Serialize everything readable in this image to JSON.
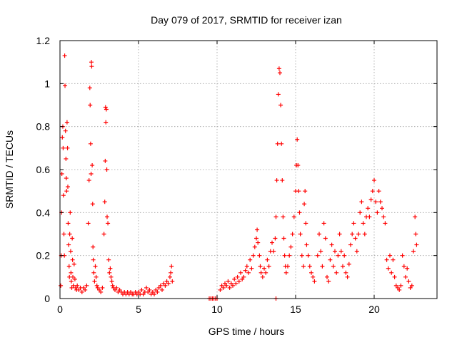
{
  "chart_data": {
    "type": "scatter",
    "title": "Day 079 of 2017, SRMTID for receiver izan",
    "xlabel": "GPS time / hours",
    "ylabel": "SRMTID / TECUs",
    "xlim": [
      0,
      24
    ],
    "ylim": [
      0,
      1.2
    ],
    "x_ticks": [
      0,
      5,
      10,
      15,
      20
    ],
    "x_tick_labels": [
      "0",
      "5",
      "10",
      "15",
      "20"
    ],
    "y_ticks": [
      0,
      0.2,
      0.4,
      0.6,
      0.8,
      1.0,
      1.2
    ],
    "y_tick_labels": [
      "0",
      "0.2",
      "0.4",
      "0.6",
      "0.8",
      "1",
      "1.2"
    ],
    "grid": true,
    "marker": "+",
    "series": [
      {
        "name": "SRMTID",
        "color": "#ff0000",
        "points": [
          [
            0.05,
            0.06
          ],
          [
            0.08,
            0.2
          ],
          [
            0.1,
            0.4
          ],
          [
            0.12,
            0.58
          ],
          [
            0.15,
            0.75
          ],
          [
            0.18,
            0.8
          ],
          [
            0.2,
            0.7
          ],
          [
            0.22,
            0.48
          ],
          [
            0.25,
            0.3
          ],
          [
            0.28,
            0.2
          ],
          [
            0.3,
            1.13
          ],
          [
            0.32,
            0.99
          ],
          [
            0.35,
            0.78
          ],
          [
            0.38,
            0.65
          ],
          [
            0.4,
            0.56
          ],
          [
            0.42,
            0.5
          ],
          [
            0.45,
            0.82
          ],
          [
            0.48,
            0.7
          ],
          [
            0.5,
            0.52
          ],
          [
            0.52,
            0.35
          ],
          [
            0.55,
            0.25
          ],
          [
            0.58,
            0.15
          ],
          [
            0.6,
            0.1
          ],
          [
            0.62,
            0.3
          ],
          [
            0.65,
            0.4
          ],
          [
            0.68,
            0.22
          ],
          [
            0.7,
            0.12
          ],
          [
            0.72,
            0.08
          ],
          [
            0.75,
            0.05
          ],
          [
            0.78,
            0.28
          ],
          [
            0.8,
            0.18
          ],
          [
            0.82,
            0.1
          ],
          [
            0.85,
            0.06
          ],
          [
            0.9,
            0.16
          ],
          [
            0.95,
            0.09
          ],
          [
            1.0,
            0.05
          ],
          [
            1.05,
            0.04
          ],
          [
            1.1,
            0.06
          ],
          [
            1.2,
            0.04
          ],
          [
            1.3,
            0.05
          ],
          [
            1.4,
            0.03
          ],
          [
            1.5,
            0.05
          ],
          [
            1.6,
            0.04
          ],
          [
            1.7,
            0.06
          ],
          [
            1.8,
            0.35
          ],
          [
            1.85,
            0.55
          ],
          [
            1.9,
            0.98
          ],
          [
            1.92,
            0.9
          ],
          [
            1.95,
            0.72
          ],
          [
            1.98,
            0.58
          ],
          [
            2.0,
            1.1
          ],
          [
            2.02,
            1.08
          ],
          [
            2.05,
            0.62
          ],
          [
            2.08,
            0.44
          ],
          [
            2.1,
            0.24
          ],
          [
            2.12,
            0.18
          ],
          [
            2.15,
            0.12
          ],
          [
            2.2,
            0.08
          ],
          [
            2.25,
            0.15
          ],
          [
            2.3,
            0.1
          ],
          [
            2.35,
            0.06
          ],
          [
            2.4,
            0.05
          ],
          [
            2.5,
            0.04
          ],
          [
            2.6,
            0.03
          ],
          [
            2.7,
            0.05
          ],
          [
            2.8,
            0.3
          ],
          [
            2.85,
            0.45
          ],
          [
            2.88,
            0.64
          ],
          [
            2.9,
            0.89
          ],
          [
            2.92,
            0.82
          ],
          [
            2.95,
            0.88
          ],
          [
            2.98,
            0.6
          ],
          [
            3.0,
            0.38
          ],
          [
            3.05,
            0.35
          ],
          [
            3.1,
            0.18
          ],
          [
            3.15,
            0.12
          ],
          [
            3.2,
            0.14
          ],
          [
            3.25,
            0.1
          ],
          [
            3.3,
            0.08
          ],
          [
            3.35,
            0.06
          ],
          [
            3.4,
            0.05
          ],
          [
            3.5,
            0.04
          ],
          [
            3.6,
            0.05
          ],
          [
            3.7,
            0.03
          ],
          [
            3.8,
            0.04
          ],
          [
            3.9,
            0.03
          ],
          [
            4.0,
            0.02
          ],
          [
            4.1,
            0.03
          ],
          [
            4.2,
            0.02
          ],
          [
            4.3,
            0.03
          ],
          [
            4.4,
            0.02
          ],
          [
            4.5,
            0.03
          ],
          [
            4.6,
            0.02
          ],
          [
            4.7,
            0.02
          ],
          [
            4.8,
            0.03
          ],
          [
            4.9,
            0.02
          ],
          [
            5.0,
            0.03
          ],
          [
            5.1,
            0.02
          ],
          [
            5.2,
            0.04
          ],
          [
            5.3,
            0.02
          ],
          [
            5.4,
            0.03
          ],
          [
            5.5,
            0.05
          ],
          [
            5.6,
            0.03
          ],
          [
            5.7,
            0.04
          ],
          [
            5.8,
            0.02
          ],
          [
            5.9,
            0.03
          ],
          [
            6.0,
            0.02
          ],
          [
            6.1,
            0.04
          ],
          [
            6.2,
            0.03
          ],
          [
            6.3,
            0.05
          ],
          [
            6.4,
            0.06
          ],
          [
            6.5,
            0.04
          ],
          [
            6.6,
            0.07
          ],
          [
            6.7,
            0.06
          ],
          [
            6.8,
            0.08
          ],
          [
            6.9,
            0.07
          ],
          [
            7.0,
            0.1
          ],
          [
            7.05,
            0.12
          ],
          [
            7.1,
            0.15
          ],
          [
            7.15,
            0.08
          ],
          [
            9.5,
            0.0
          ],
          [
            9.6,
            0.0
          ],
          [
            9.7,
            0.0
          ],
          [
            9.8,
            0.0
          ],
          [
            9.9,
            0.0
          ],
          [
            10.0,
            0.0
          ],
          [
            13.75,
            0.0
          ],
          [
            10.2,
            0.04
          ],
          [
            10.3,
            0.06
          ],
          [
            10.4,
            0.05
          ],
          [
            10.5,
            0.07
          ],
          [
            10.6,
            0.06
          ],
          [
            10.7,
            0.08
          ],
          [
            10.8,
            0.05
          ],
          [
            10.9,
            0.07
          ],
          [
            11.0,
            0.06
          ],
          [
            11.1,
            0.09
          ],
          [
            11.2,
            0.07
          ],
          [
            11.3,
            0.1
          ],
          [
            11.4,
            0.08
          ],
          [
            11.5,
            0.12
          ],
          [
            11.6,
            0.09
          ],
          [
            11.7,
            0.1
          ],
          [
            11.8,
            0.13
          ],
          [
            11.9,
            0.15
          ],
          [
            12.0,
            0.12
          ],
          [
            12.1,
            0.18
          ],
          [
            12.2,
            0.14
          ],
          [
            12.3,
            0.2
          ],
          [
            12.4,
            0.24
          ],
          [
            12.5,
            0.28
          ],
          [
            12.55,
            0.32
          ],
          [
            12.6,
            0.26
          ],
          [
            12.7,
            0.2
          ],
          [
            12.75,
            0.15
          ],
          [
            12.8,
            0.12
          ],
          [
            12.9,
            0.1
          ],
          [
            13.0,
            0.14
          ],
          [
            13.1,
            0.12
          ],
          [
            13.2,
            0.18
          ],
          [
            13.3,
            0.15
          ],
          [
            13.4,
            0.22
          ],
          [
            13.5,
            0.26
          ],
          [
            13.6,
            0.22
          ],
          [
            13.7,
            0.28
          ],
          [
            13.75,
            0.38
          ],
          [
            13.8,
            0.55
          ],
          [
            13.85,
            0.72
          ],
          [
            13.9,
            0.95
          ],
          [
            13.95,
            1.07
          ],
          [
            14.0,
            1.05
          ],
          [
            14.05,
            0.9
          ],
          [
            14.1,
            0.72
          ],
          [
            14.15,
            0.55
          ],
          [
            14.2,
            0.38
          ],
          [
            14.25,
            0.28
          ],
          [
            14.3,
            0.2
          ],
          [
            14.35,
            0.15
          ],
          [
            14.4,
            0.12
          ],
          [
            14.5,
            0.15
          ],
          [
            14.6,
            0.2
          ],
          [
            14.7,
            0.24
          ],
          [
            14.8,
            0.3
          ],
          [
            14.9,
            0.38
          ],
          [
            15.0,
            0.5
          ],
          [
            15.05,
            0.62
          ],
          [
            15.1,
            0.74
          ],
          [
            15.15,
            0.62
          ],
          [
            15.2,
            0.5
          ],
          [
            15.25,
            0.4
          ],
          [
            15.3,
            0.3
          ],
          [
            15.4,
            0.2
          ],
          [
            15.5,
            0.15
          ],
          [
            15.55,
            0.44
          ],
          [
            15.6,
            0.5
          ],
          [
            15.65,
            0.35
          ],
          [
            15.7,
            0.25
          ],
          [
            15.8,
            0.2
          ],
          [
            15.9,
            0.15
          ],
          [
            16.0,
            0.12
          ],
          [
            16.1,
            0.1
          ],
          [
            16.2,
            0.08
          ],
          [
            16.4,
            0.2
          ],
          [
            16.5,
            0.3
          ],
          [
            16.6,
            0.22
          ],
          [
            16.7,
            0.15
          ],
          [
            16.8,
            0.35
          ],
          [
            16.9,
            0.28
          ],
          [
            17.0,
            0.1
          ],
          [
            17.1,
            0.08
          ],
          [
            17.2,
            0.18
          ],
          [
            17.3,
            0.25
          ],
          [
            17.4,
            0.15
          ],
          [
            17.5,
            0.22
          ],
          [
            17.6,
            0.12
          ],
          [
            17.7,
            0.2
          ],
          [
            17.8,
            0.3
          ],
          [
            17.9,
            0.22
          ],
          [
            18.0,
            0.15
          ],
          [
            18.1,
            0.2
          ],
          [
            18.2,
            0.12
          ],
          [
            18.3,
            0.1
          ],
          [
            18.4,
            0.16
          ],
          [
            18.5,
            0.25
          ],
          [
            18.6,
            0.3
          ],
          [
            18.7,
            0.35
          ],
          [
            18.8,
            0.28
          ],
          [
            18.9,
            0.22
          ],
          [
            19.0,
            0.3
          ],
          [
            19.1,
            0.4
          ],
          [
            19.2,
            0.45
          ],
          [
            19.3,
            0.35
          ],
          [
            19.4,
            0.3
          ],
          [
            19.5,
            0.38
          ],
          [
            19.6,
            0.42
          ],
          [
            19.7,
            0.38
          ],
          [
            19.8,
            0.46
          ],
          [
            19.9,
            0.5
          ],
          [
            20.0,
            0.55
          ],
          [
            20.1,
            0.45
          ],
          [
            20.2,
            0.4
          ],
          [
            20.3,
            0.5
          ],
          [
            20.4,
            0.45
          ],
          [
            20.5,
            0.42
          ],
          [
            20.6,
            0.38
          ],
          [
            20.7,
            0.35
          ],
          [
            20.8,
            0.18
          ],
          [
            20.9,
            0.14
          ],
          [
            21.0,
            0.2
          ],
          [
            21.1,
            0.12
          ],
          [
            21.2,
            0.18
          ],
          [
            21.3,
            0.1
          ],
          [
            21.4,
            0.06
          ],
          [
            21.5,
            0.05
          ],
          [
            21.6,
            0.04
          ],
          [
            21.7,
            0.06
          ],
          [
            21.8,
            0.2
          ],
          [
            21.9,
            0.15
          ],
          [
            22.0,
            0.1
          ],
          [
            22.1,
            0.14
          ],
          [
            22.2,
            0.08
          ],
          [
            22.3,
            0.05
          ],
          [
            22.4,
            0.06
          ],
          [
            22.5,
            0.22
          ],
          [
            22.6,
            0.38
          ],
          [
            22.65,
            0.3
          ],
          [
            22.7,
            0.25
          ]
        ]
      }
    ]
  }
}
